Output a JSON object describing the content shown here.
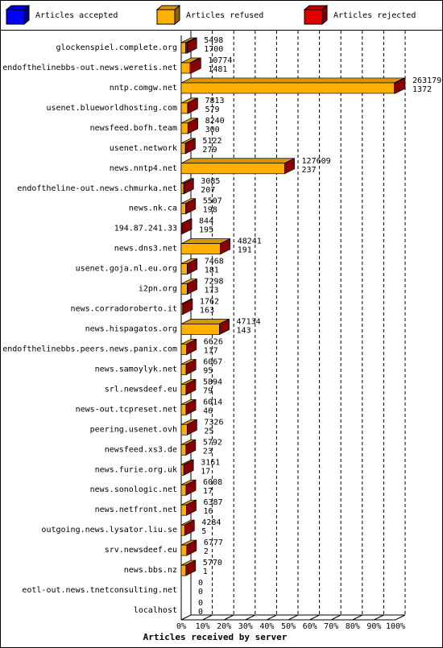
{
  "chart_data": {
    "type": "bar",
    "x_label": "Articles received by server",
    "legend": "top",
    "grid": true,
    "categories": [
      "glockenspiel.complete.org",
      "endofthelinebbs-out.news.weretis.net",
      "nntp.comgw.net",
      "usenet.blueworldhosting.com",
      "newsfeed.bofh.team",
      "usenet.network",
      "news.nntp4.net",
      "endoftheline-out.news.chmurka.net",
      "news.nk.ca",
      "194.87.241.33",
      "news.dns3.net",
      "usenet.goja.nl.eu.org",
      "i2pn.org",
      "news.corradoroberto.it",
      "news.hispagatos.org",
      "endofthelinebbs.peers.news.panix.com",
      "news.samoylyk.net",
      "srl.newsdeef.eu",
      "news-out.tcpreset.net",
      "peering.usenet.ovh",
      "newsfeed.xs3.de",
      "news.furie.org.uk",
      "news.sonologic.net",
      "news.netfront.net",
      "outgoing.news.lysator.liu.se",
      "srv.newsdeef.eu",
      "news.bbs.nz",
      "eotl-out.news.tnetconsulting.net",
      "localhost"
    ],
    "series": [
      {
        "name": "Articles accepted",
        "color": "#0000ff",
        "values": [
          0,
          0,
          0,
          0,
          0,
          0,
          0,
          0,
          0,
          0,
          0,
          0,
          0,
          0,
          0,
          0,
          0,
          0,
          0,
          0,
          0,
          0,
          0,
          0,
          0,
          0,
          0,
          0,
          0
        ]
      },
      {
        "name": "Articles refused",
        "color": "#ffb000",
        "values": [
          5498,
          10774,
          263179,
          7813,
          8240,
          5122,
          127609,
          3085,
          5507,
          844,
          48241,
          7468,
          7298,
          1762,
          47134,
          6626,
          6067,
          5894,
          6014,
          7326,
          5792,
          3161,
          6008,
          6387,
          4284,
          6777,
          5770,
          0,
          0
        ]
      },
      {
        "name": "Articles rejected",
        "color": "#e00000",
        "values": [
          1700,
          1481,
          1372,
          579,
          300,
          279,
          237,
          207,
          198,
          195,
          191,
          181,
          173,
          163,
          143,
          117,
          95,
          79,
          46,
          25,
          23,
          17,
          17,
          16,
          5,
          2,
          1,
          0,
          0
        ]
      }
    ],
    "xlim": [
      0,
      264551
    ],
    "xticks": [
      {
        "value": 0,
        "label": "0%"
      },
      {
        "value": 26455.1,
        "label": "10%"
      },
      {
        "value": 52910.2,
        "label": "20%"
      },
      {
        "value": 79365.3,
        "label": "30%"
      },
      {
        "value": 105820.4,
        "label": "40%"
      },
      {
        "value": 132275.5,
        "label": "50%"
      },
      {
        "value": 158730.6,
        "label": "60%"
      },
      {
        "value": 185185.7,
        "label": "70%"
      },
      {
        "value": 211640.8,
        "label": "80%"
      },
      {
        "value": 238095.9,
        "label": "90%"
      },
      {
        "value": 264551,
        "label": "100%"
      }
    ]
  }
}
